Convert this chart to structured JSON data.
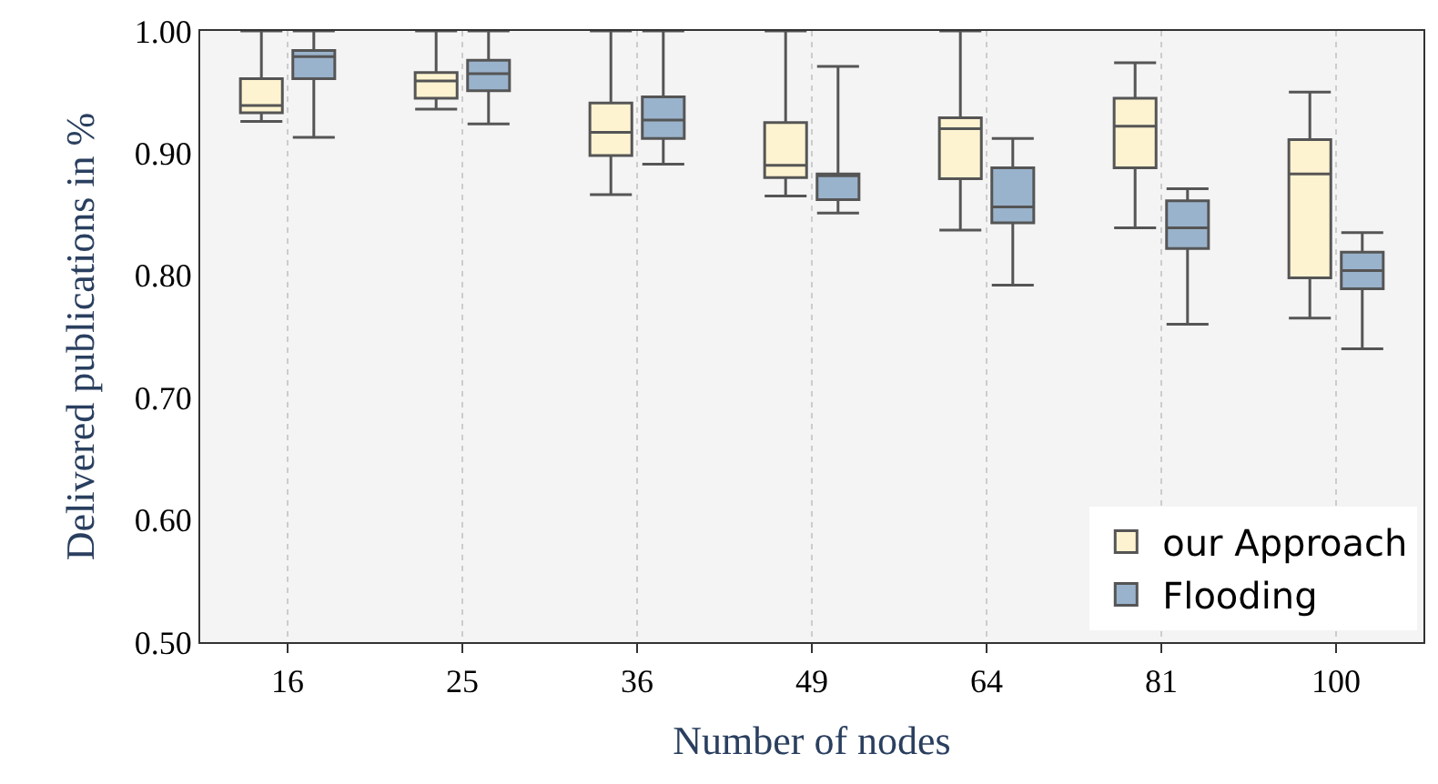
{
  "chart_data": {
    "type": "box",
    "xlabel": "Number of nodes",
    "ylabel": "Delivered publications in %",
    "categories": [
      "16",
      "25",
      "36",
      "49",
      "64",
      "81",
      "100"
    ],
    "ylim": [
      0.5,
      1.0
    ],
    "yticks": [
      {
        "value": 0.5,
        "label": "0.50"
      },
      {
        "value": 0.6,
        "label": "0.60"
      },
      {
        "value": 0.7,
        "label": "0.70"
      },
      {
        "value": 0.8,
        "label": "0.80"
      },
      {
        "value": 0.9,
        "label": "0.90"
      },
      {
        "value": 1.0,
        "label": "1.00"
      }
    ],
    "grid": "x",
    "legend": "bottom right",
    "series": [
      {
        "name": "our Approach",
        "color": "#fdf3d0",
        "boxes": [
          {
            "low": 0.926,
            "q1": 0.933,
            "median": 0.939,
            "q3": 0.961,
            "high": 1.0
          },
          {
            "low": 0.936,
            "q1": 0.945,
            "median": 0.959,
            "q3": 0.966,
            "high": 1.0
          },
          {
            "low": 0.866,
            "q1": 0.898,
            "median": 0.917,
            "q3": 0.941,
            "high": 1.0
          },
          {
            "low": 0.865,
            "q1": 0.88,
            "median": 0.89,
            "q3": 0.925,
            "high": 1.0
          },
          {
            "low": 0.837,
            "q1": 0.879,
            "median": 0.92,
            "q3": 0.929,
            "high": 1.0
          },
          {
            "low": 0.839,
            "q1": 0.888,
            "median": 0.922,
            "q3": 0.945,
            "high": 0.974
          },
          {
            "low": 0.765,
            "q1": 0.798,
            "median": 0.883,
            "q3": 0.911,
            "high": 0.95
          }
        ]
      },
      {
        "name": "Flooding",
        "color": "#9ab3cc",
        "boxes": [
          {
            "low": 0.913,
            "q1": 0.961,
            "median": 0.979,
            "q3": 0.984,
            "high": 1.0
          },
          {
            "low": 0.924,
            "q1": 0.951,
            "median": 0.965,
            "q3": 0.976,
            "high": 1.0
          },
          {
            "low": 0.891,
            "q1": 0.912,
            "median": 0.927,
            "q3": 0.946,
            "high": 1.0
          },
          {
            "low": 0.851,
            "q1": 0.862,
            "median": 0.882,
            "q3": 0.883,
            "high": 0.971
          },
          {
            "low": 0.792,
            "q1": 0.843,
            "median": 0.856,
            "q3": 0.888,
            "high": 0.912
          },
          {
            "low": 0.76,
            "q1": 0.822,
            "median": 0.839,
            "q3": 0.861,
            "high": 0.871
          },
          {
            "low": 0.74,
            "q1": 0.789,
            "median": 0.804,
            "q3": 0.819,
            "high": 0.835
          }
        ]
      }
    ]
  }
}
